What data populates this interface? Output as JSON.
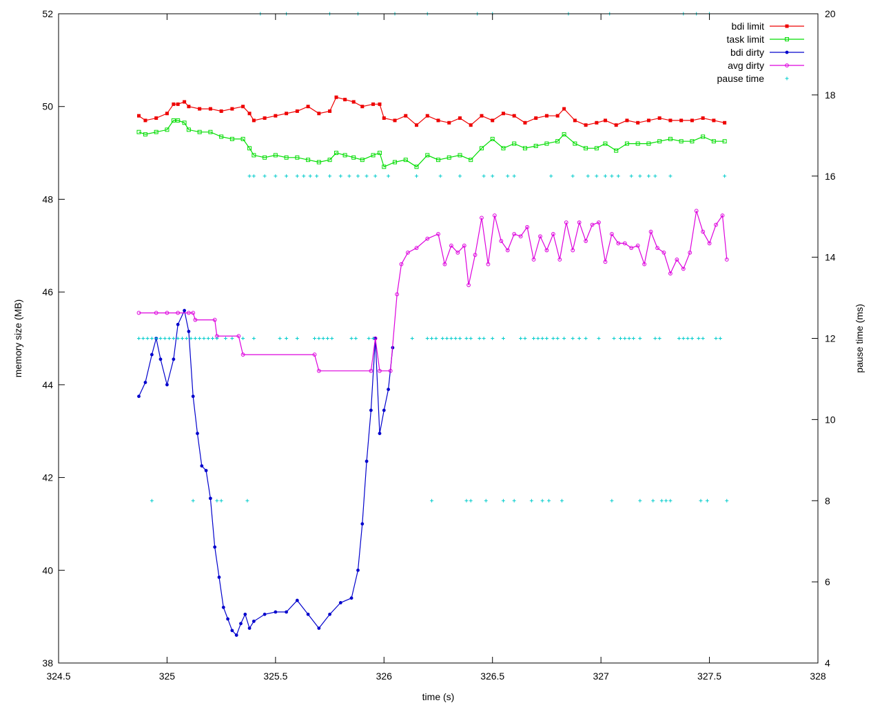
{
  "chart_data": {
    "type": "line",
    "title": "",
    "xlabel": "time (s)",
    "ylabel": "memory size (MB)",
    "y2label": "pause time (ms)",
    "xlim": [
      324.5,
      328
    ],
    "ylim": [
      38,
      52
    ],
    "y2lim": [
      4,
      20
    ],
    "xticks": [
      "324.5",
      "325",
      "325.5",
      "326",
      "326.5",
      "327",
      "327.5",
      "328"
    ],
    "yticks": [
      "38",
      "40",
      "42",
      "44",
      "46",
      "48",
      "50",
      "52"
    ],
    "y2ticks": [
      "4",
      "6",
      "8",
      "10",
      "12",
      "14",
      "16",
      "18",
      "20"
    ],
    "grid": false,
    "legend_position": "top-right",
    "colors": {
      "bdi_limit": "#ee0000",
      "task_limit": "#00dd00",
      "bdi_dirty": "#0000cc",
      "avg_dirty": "#dd00dd",
      "pause_time": "#00cccc"
    },
    "series": [
      {
        "name": "bdi limit",
        "axis": "left",
        "x": [
          324.87,
          324.9,
          324.95,
          325.0,
          325.03,
          325.05,
          325.08,
          325.1,
          325.15,
          325.2,
          325.25,
          325.3,
          325.35,
          325.38,
          325.4,
          325.45,
          325.5,
          325.55,
          325.6,
          325.65,
          325.7,
          325.75,
          325.78,
          325.82,
          325.86,
          325.9,
          325.95,
          325.98,
          326.0,
          326.05,
          326.1,
          326.15,
          326.2,
          326.25,
          326.3,
          326.35,
          326.4,
          326.45,
          326.5,
          326.55,
          326.6,
          326.65,
          326.7,
          326.75,
          326.8,
          326.83,
          326.88,
          326.93,
          326.98,
          327.02,
          327.07,
          327.12,
          327.17,
          327.22,
          327.27,
          327.32,
          327.37,
          327.42,
          327.47,
          327.52,
          327.57
        ],
        "values": [
          49.8,
          49.7,
          49.75,
          49.85,
          50.05,
          50.05,
          50.1,
          50.0,
          49.95,
          49.95,
          49.9,
          49.95,
          50.0,
          49.85,
          49.7,
          49.75,
          49.8,
          49.85,
          49.9,
          50.0,
          49.85,
          49.9,
          50.2,
          50.15,
          50.1,
          50.0,
          50.05,
          50.05,
          49.75,
          49.7,
          49.8,
          49.6,
          49.8,
          49.7,
          49.65,
          49.75,
          49.6,
          49.8,
          49.7,
          49.85,
          49.8,
          49.65,
          49.75,
          49.8,
          49.8,
          49.95,
          49.7,
          49.6,
          49.65,
          49.7,
          49.6,
          49.7,
          49.65,
          49.7,
          49.75,
          49.7,
          49.7,
          49.7,
          49.75,
          49.7,
          49.65
        ]
      },
      {
        "name": "task limit",
        "axis": "left",
        "x": [
          324.87,
          324.9,
          324.95,
          325.0,
          325.03,
          325.05,
          325.08,
          325.1,
          325.15,
          325.2,
          325.25,
          325.3,
          325.35,
          325.38,
          325.4,
          325.45,
          325.5,
          325.55,
          325.6,
          325.65,
          325.7,
          325.75,
          325.78,
          325.82,
          325.86,
          325.9,
          325.95,
          325.98,
          326.0,
          326.05,
          326.1,
          326.15,
          326.2,
          326.25,
          326.3,
          326.35,
          326.4,
          326.45,
          326.5,
          326.55,
          326.6,
          326.65,
          326.7,
          326.75,
          326.8,
          326.83,
          326.88,
          326.93,
          326.98,
          327.02,
          327.07,
          327.12,
          327.17,
          327.22,
          327.27,
          327.32,
          327.37,
          327.42,
          327.47,
          327.52,
          327.57
        ],
        "values": [
          49.45,
          49.4,
          49.45,
          49.5,
          49.7,
          49.7,
          49.65,
          49.5,
          49.45,
          49.45,
          49.35,
          49.3,
          49.3,
          49.1,
          48.95,
          48.9,
          48.95,
          48.9,
          48.9,
          48.85,
          48.8,
          48.85,
          49.0,
          48.95,
          48.9,
          48.85,
          48.95,
          49.0,
          48.7,
          48.8,
          48.85,
          48.7,
          48.95,
          48.85,
          48.9,
          48.95,
          48.85,
          49.1,
          49.3,
          49.1,
          49.2,
          49.1,
          49.15,
          49.2,
          49.25,
          49.4,
          49.2,
          49.1,
          49.1,
          49.2,
          49.05,
          49.2,
          49.2,
          49.2,
          49.25,
          49.3,
          49.25,
          49.25,
          49.35,
          49.25,
          49.25
        ]
      },
      {
        "name": "bdi dirty",
        "axis": "left",
        "x": [
          324.87,
          324.9,
          324.93,
          324.95,
          324.97,
          325.0,
          325.03,
          325.05,
          325.08,
          325.1,
          325.12,
          325.14,
          325.16,
          325.18,
          325.2,
          325.22,
          325.24,
          325.26,
          325.28,
          325.3,
          325.32,
          325.34,
          325.36,
          325.38,
          325.4,
          325.45,
          325.5,
          325.55,
          325.6,
          325.65,
          325.7,
          325.75,
          325.8,
          325.85,
          325.88,
          325.9,
          325.92,
          325.94,
          325.96,
          325.98,
          326.0,
          326.02,
          326.04
        ],
        "values": [
          43.75,
          44.05,
          44.65,
          45.0,
          44.55,
          44.0,
          44.55,
          45.3,
          45.6,
          45.15,
          43.75,
          42.95,
          42.25,
          42.15,
          41.55,
          40.5,
          39.85,
          39.2,
          38.95,
          38.7,
          38.6,
          38.85,
          39.05,
          38.75,
          38.9,
          39.05,
          39.1,
          39.1,
          39.35,
          39.05,
          38.75,
          39.05,
          39.3,
          39.4,
          40.0,
          41.0,
          42.35,
          43.45,
          45.0,
          42.95,
          43.45,
          43.9,
          44.8
        ]
      },
      {
        "name": "avg dirty",
        "axis": "left",
        "x": [
          324.87,
          324.95,
          325.0,
          325.05,
          325.1,
          325.12,
          325.13,
          325.22,
          325.23,
          325.33,
          325.35,
          325.68,
          325.7,
          325.94,
          325.96,
          325.98,
          326.03,
          326.06,
          326.08,
          326.11,
          326.15,
          326.2,
          326.25,
          326.28,
          326.31,
          326.34,
          326.37,
          326.39,
          326.42,
          326.45,
          326.48,
          326.51,
          326.54,
          326.57,
          326.6,
          326.63,
          326.66,
          326.69,
          326.72,
          326.75,
          326.78,
          326.81,
          326.84,
          326.87,
          326.9,
          326.93,
          326.96,
          326.99,
          327.02,
          327.05,
          327.08,
          327.11,
          327.14,
          327.17,
          327.2,
          327.23,
          327.26,
          327.29,
          327.32,
          327.35,
          327.38,
          327.41,
          327.44,
          327.47,
          327.5,
          327.53,
          327.56,
          327.58
        ],
        "values": [
          45.55,
          45.55,
          45.55,
          45.55,
          45.55,
          45.55,
          45.4,
          45.4,
          45.05,
          45.05,
          44.65,
          44.65,
          44.3,
          44.3,
          45.0,
          44.3,
          44.3,
          45.95,
          46.6,
          46.85,
          46.95,
          47.15,
          47.25,
          46.6,
          47.0,
          46.85,
          47.0,
          46.15,
          46.8,
          47.6,
          46.6,
          47.65,
          47.1,
          46.9,
          47.25,
          47.2,
          47.4,
          46.7,
          47.2,
          46.9,
          47.25,
          46.7,
          47.5,
          46.9,
          47.5,
          47.1,
          47.45,
          47.5,
          46.65,
          47.25,
          47.05,
          47.05,
          46.95,
          47.0,
          46.6,
          47.3,
          46.95,
          46.85,
          46.4,
          46.7,
          46.5,
          46.85,
          47.75,
          47.3,
          47.05,
          47.45,
          47.65,
          46.7
        ]
      },
      {
        "name": "pause time",
        "axis": "right",
        "style": "points",
        "x": [
          324.87,
          324.89,
          324.91,
          324.93,
          324.95,
          324.97,
          324.99,
          325.01,
          325.03,
          325.05,
          325.07,
          325.09,
          325.11,
          325.13,
          325.15,
          325.17,
          325.19,
          325.21,
          325.23,
          325.27,
          325.3,
          325.35,
          325.4,
          325.52,
          325.55,
          325.6,
          325.68,
          325.7,
          325.72,
          325.74,
          325.76,
          325.85,
          325.87,
          325.93,
          325.95,
          326.13,
          326.2,
          326.22,
          326.24,
          326.27,
          326.29,
          326.31,
          326.33,
          326.35,
          326.38,
          326.4,
          326.44,
          326.46,
          326.5,
          326.55,
          326.63,
          326.65,
          326.69,
          326.71,
          326.73,
          326.75,
          326.78,
          326.8,
          326.83,
          326.87,
          326.9,
          326.93,
          326.99,
          327.06,
          327.09,
          327.11,
          327.13,
          327.15,
          327.18,
          327.25,
          327.27,
          327.36,
          327.38,
          327.4,
          327.42,
          327.45,
          327.47,
          327.53,
          327.55,
          324.93,
          325.12,
          325.23,
          325.25,
          325.37,
          326.22,
          326.38,
          326.4,
          326.47,
          326.55,
          326.6,
          326.68,
          326.73,
          326.76,
          326.82,
          327.05,
          327.18,
          327.24,
          327.28,
          327.3,
          327.32,
          327.46,
          327.49,
          327.58,
          325.38,
          325.4,
          325.45,
          325.5,
          325.55,
          325.6,
          325.63,
          325.66,
          325.69,
          325.75,
          325.8,
          325.84,
          325.88,
          325.92,
          325.96,
          326.02,
          326.15,
          326.26,
          326.35,
          326.46,
          326.5,
          326.57,
          326.6,
          326.77,
          326.87,
          326.94,
          326.98,
          327.02,
          327.05,
          327.08,
          327.14,
          327.18,
          327.22,
          327.25,
          327.32,
          327.57,
          325.43,
          325.55,
          325.75,
          325.88,
          326.05,
          326.2,
          326.43,
          326.5,
          326.85,
          327.04,
          327.38,
          327.44,
          327.5
        ],
        "values": [
          12,
          12,
          12,
          12,
          12,
          12,
          12,
          12,
          12,
          12,
          12,
          12,
          12,
          12,
          12,
          12,
          12,
          12,
          12,
          12,
          12,
          12,
          12,
          12,
          12,
          12,
          12,
          12,
          12,
          12,
          12,
          12,
          12,
          12,
          12,
          12,
          12,
          12,
          12,
          12,
          12,
          12,
          12,
          12,
          12,
          12,
          12,
          12,
          12,
          12,
          12,
          12,
          12,
          12,
          12,
          12,
          12,
          12,
          12,
          12,
          12,
          12,
          12,
          12,
          12,
          12,
          12,
          12,
          12,
          12,
          12,
          12,
          12,
          12,
          12,
          12,
          12,
          12,
          12,
          8,
          8,
          8,
          8,
          8,
          8,
          8,
          8,
          8,
          8,
          8,
          8,
          8,
          8,
          8,
          8,
          8,
          8,
          8,
          8,
          8,
          8,
          8,
          8,
          16,
          16,
          16,
          16,
          16,
          16,
          16,
          16,
          16,
          16,
          16,
          16,
          16,
          16,
          16,
          16,
          16,
          16,
          16,
          16,
          16,
          16,
          16,
          16,
          16,
          16,
          16,
          16,
          16,
          16,
          16,
          16,
          16,
          16,
          16,
          16,
          20,
          20,
          20,
          20,
          20,
          20,
          20,
          20,
          20,
          20,
          20,
          20,
          20
        ]
      }
    ]
  }
}
